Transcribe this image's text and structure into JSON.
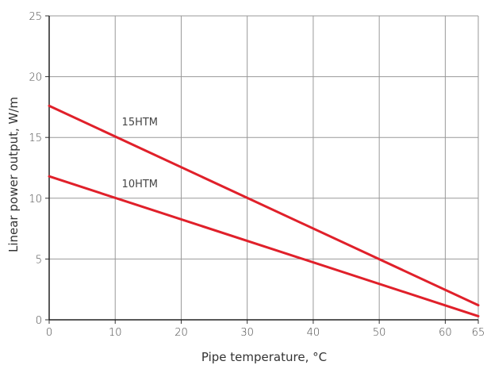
{
  "chart_data": {
    "type": "line",
    "title": "",
    "xlabel": "Pipe temperature, °C",
    "ylabel": "Linear power output, W/m",
    "xlim": [
      0,
      65
    ],
    "ylim": [
      0,
      25
    ],
    "xticks": [
      0,
      10,
      20,
      30,
      40,
      50,
      60,
      65
    ],
    "yticks": [
      0,
      5,
      10,
      15,
      20,
      25
    ],
    "grid": true,
    "legend": "none",
    "line_color": "#e0202a",
    "series": [
      {
        "name": "15HTM",
        "x": [
          0,
          65
        ],
        "y": [
          17.6,
          1.2
        ],
        "label_at": [
          11,
          16
        ]
      },
      {
        "name": "10HTM",
        "x": [
          0,
          65
        ],
        "y": [
          11.8,
          0.3
        ],
        "label_at": [
          11,
          10.9
        ]
      }
    ]
  }
}
